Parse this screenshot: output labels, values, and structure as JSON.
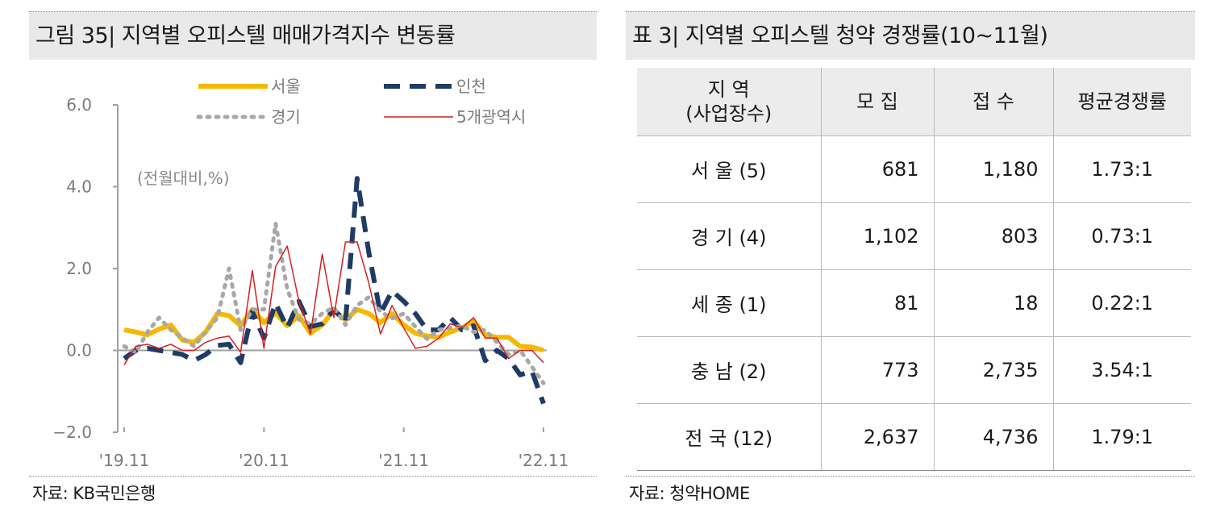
{
  "left_panel": {
    "title": "그림 35| 지역별 오피스텔 매매가격지수 변동률",
    "source": "자료: KB국민은행"
  },
  "right_panel": {
    "title": "표 3| 지역별 오피스텔 청약 경쟁률(10~11월)",
    "source": "자료: 청약HOME",
    "headers": [
      "지 역",
      "(사업장수)",
      "모 집",
      "접 수",
      "평균경쟁률"
    ],
    "rows": [
      {
        "region": "서 울 (5)",
        "recruit": "681",
        "applied": "1,180",
        "ratio": "1.73:1"
      },
      {
        "region": "경 기 (4)",
        "recruit": "1,102",
        "applied": "803",
        "ratio": "0.73:1"
      },
      {
        "region": "세 종 (1)",
        "recruit": "81",
        "applied": "18",
        "ratio": "0.22:1"
      },
      {
        "region": "충 남 (2)",
        "recruit": "773",
        "applied": "2,735",
        "ratio": "3.54:1"
      },
      {
        "region": "전 국 (12)",
        "recruit": "2,637",
        "applied": "4,736",
        "ratio": "1.79:1"
      }
    ]
  },
  "chart_data": {
    "type": "line",
    "annotation": "(전월대비,%)",
    "ylim": [
      -2.0,
      6.0
    ],
    "yticks": [
      6.0,
      4.0,
      2.0,
      0.0,
      -2.0
    ],
    "ytick_labels": [
      "6.0",
      "4.0",
      "2.0",
      "0.0",
      "−2.0"
    ],
    "x_range": [
      "2019-11",
      "2022-11"
    ],
    "xtick_labels": [
      "'19.11",
      "'20.11",
      "'21.11",
      "'22.11"
    ],
    "xtick_index": [
      0,
      12,
      24,
      36
    ],
    "legend_placement": "top",
    "series": [
      {
        "name": "서울",
        "color": "#f5b800",
        "dash": "solid",
        "width": 6,
        "values": [
          0.5,
          0.45,
          0.38,
          0.52,
          0.62,
          0.25,
          0.2,
          0.45,
          0.9,
          0.85,
          0.6,
          1.0,
          0.68,
          0.92,
          0.6,
          0.85,
          0.42,
          0.62,
          0.98,
          0.75,
          1.0,
          0.9,
          0.68,
          0.9,
          0.62,
          0.42,
          0.35,
          0.32,
          0.45,
          0.55,
          0.72,
          0.38,
          0.32,
          0.32,
          0.1,
          0.08,
          0.0
        ]
      },
      {
        "name": "인천",
        "color": "#1f3b66",
        "dash": "dashed",
        "width": 6,
        "values": [
          -0.2,
          0.0,
          0.05,
          0.0,
          -0.05,
          -0.1,
          -0.25,
          -0.1,
          0.12,
          0.15,
          -0.3,
          0.95,
          0.3,
          1.15,
          0.55,
          1.2,
          0.58,
          0.65,
          1.0,
          0.7,
          4.2,
          2.4,
          0.9,
          1.45,
          1.2,
          0.9,
          0.5,
          0.5,
          0.8,
          0.5,
          0.6,
          -0.25,
          0.0,
          -0.2,
          -0.6,
          -0.5,
          -1.3
        ]
      },
      {
        "name": "경기",
        "color": "#a7a7a7",
        "dash": "dotted",
        "width": 5,
        "values": [
          0.1,
          -0.05,
          0.45,
          0.8,
          0.5,
          0.3,
          0.1,
          0.45,
          0.8,
          2.0,
          0.5,
          1.0,
          1.0,
          3.1,
          1.5,
          0.75,
          0.65,
          0.9,
          1.05,
          0.62,
          1.1,
          1.3,
          0.95,
          0.78,
          0.9,
          0.58,
          0.28,
          0.5,
          0.55,
          0.6,
          0.45,
          0.5,
          0.2,
          -0.1,
          0.0,
          -0.4,
          -0.8
        ]
      },
      {
        "name": "5개광역시",
        "color": "#d42020",
        "dash": "solid",
        "width": 1.5,
        "values": [
          -0.35,
          0.1,
          0.15,
          0.05,
          0.15,
          0.0,
          0.0,
          0.2,
          0.3,
          0.35,
          -0.05,
          1.95,
          0.05,
          2.05,
          2.55,
          1.2,
          0.4,
          2.35,
          0.8,
          2.65,
          2.65,
          1.65,
          0.4,
          1.1,
          0.55,
          0.05,
          0.1,
          0.3,
          0.65,
          0.55,
          0.8,
          0.3,
          0.3,
          -0.2,
          0.0,
          0.0,
          -0.3
        ]
      }
    ]
  }
}
